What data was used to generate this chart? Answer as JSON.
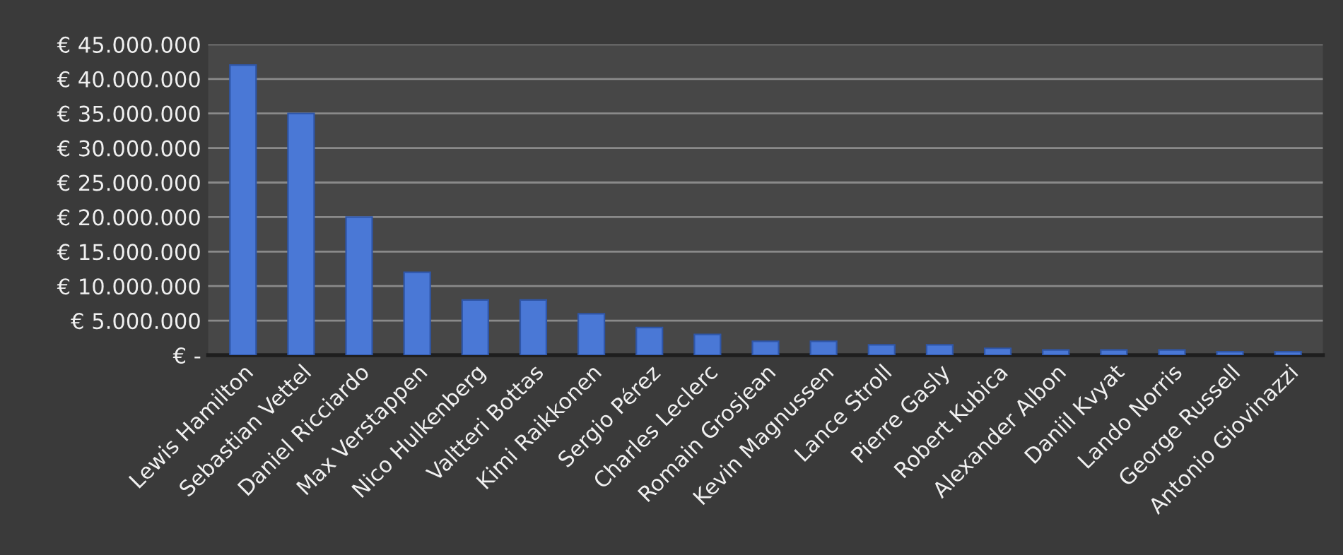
{
  "chart_data": {
    "type": "bar",
    "categories": [
      "Lewis Hamilton",
      "Sebastian Vettel",
      "Daniel Ricciardo",
      "Max Verstappen",
      "Nico Hulkenberg",
      "Valtteri Bottas",
      "Kimi Raikkonen",
      "Sergio Pérez",
      "Charles Leclerc",
      "Romain Grosjean",
      "Kevin Magnussen",
      "Lance Stroll",
      "Pierre Gasly",
      "Robert Kubica",
      "Alexander Albon",
      "Daniil Kvyat",
      "Lando Norris",
      "George Russell",
      "Antonio Giovinazzi"
    ],
    "values": [
      42000000,
      35000000,
      20000000,
      12000000,
      8000000,
      8000000,
      6000000,
      4000000,
      3000000,
      2000000,
      2000000,
      1500000,
      1500000,
      1000000,
      750000,
      750000,
      750000,
      500000,
      500000
    ],
    "color": "#4a78d6",
    "ylim": [
      0,
      45000000
    ],
    "yticks": [
      {
        "value": 0,
        "label": "€ -"
      },
      {
        "value": 5000000,
        "label": "€ 5.000.000"
      },
      {
        "value": 10000000,
        "label": "€ 10.000.000"
      },
      {
        "value": 15000000,
        "label": "€ 15.000.000"
      },
      {
        "value": 20000000,
        "label": "€ 20.000.000"
      },
      {
        "value": 25000000,
        "label": "€ 25.000.000"
      },
      {
        "value": 30000000,
        "label": "€ 30.000.000"
      },
      {
        "value": 35000000,
        "label": "€ 35.000.000"
      },
      {
        "value": 40000000,
        "label": "€ 40.000.000"
      },
      {
        "value": 45000000,
        "label": "€ 45.000.000"
      }
    ],
    "grid": "y"
  }
}
